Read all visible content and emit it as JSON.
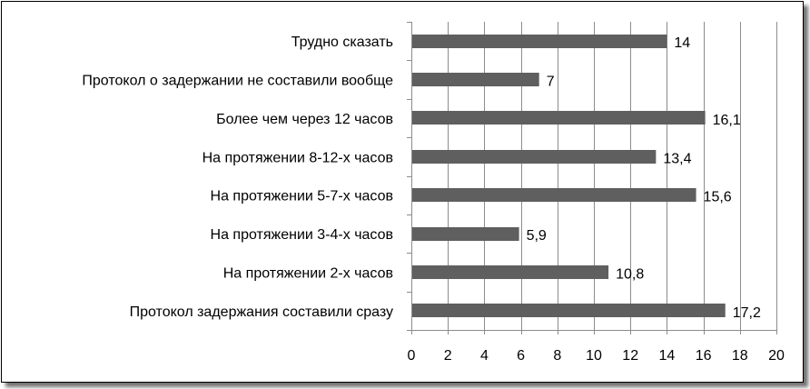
{
  "chart_data": {
    "type": "bar",
    "orientation": "horizontal",
    "categories": [
      "Трудно сказать",
      "Протокол о задержании не составили вообще",
      "Более чем через 12 часов",
      "На протяжении 8-12-х часов",
      "На протяжении 5-7-х часов",
      "На протяжении 3-4-х часов",
      "На протяжении 2-х часов",
      "Протокол задержания составили сразу"
    ],
    "values": [
      14,
      7,
      16.1,
      13.4,
      15.6,
      5.9,
      10.8,
      17.2
    ],
    "value_labels": [
      "14",
      "7",
      "16,1",
      "13,4",
      "15,6",
      "5,9",
      "10,8",
      "17,2"
    ],
    "x_ticks": [
      "0",
      "2",
      "4",
      "6",
      "8",
      "10",
      "12",
      "14",
      "16",
      "18",
      "20"
    ],
    "xlim": [
      0,
      20
    ],
    "grid": true,
    "bar_color": "#5f5f5f",
    "grid_color": "#8c8c8c"
  }
}
